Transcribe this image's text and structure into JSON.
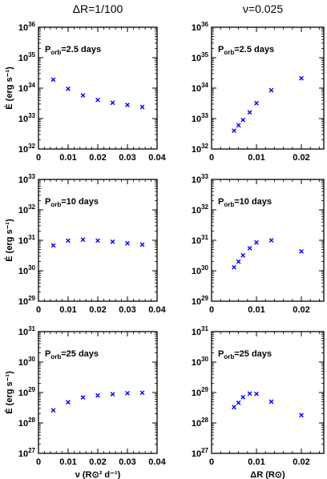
{
  "column_titles": [
    "ΔR=1/100",
    "ν=0.025"
  ],
  "colors": {
    "points": "#0000ff",
    "axes": "#000000"
  },
  "chart_data": [
    {
      "id": "nu-2.5",
      "type": "scatter",
      "marker": "x",
      "log_y": true,
      "annotation": "P_orb=2.5 days",
      "xlim": [
        0,
        0.04
      ],
      "ylim_exp": [
        32,
        36
      ],
      "xticks": [
        0,
        0.01,
        0.02,
        0.03,
        0.04
      ],
      "xtick_labels": [
        "0",
        "0.01",
        "0.02",
        "0.03",
        "0.04"
      ],
      "ylabel": "Ė (erg s⁻¹)",
      "xlabel": "",
      "x": [
        0.005,
        0.01,
        0.015,
        0.02,
        0.025,
        0.03,
        0.035
      ],
      "y": [
        1.9e+34,
        9.5e+33,
        5.8e+33,
        4.1e+33,
        3.3e+33,
        2.8e+33,
        2.4e+33
      ]
    },
    {
      "id": "dr-2.5",
      "type": "scatter",
      "marker": "x",
      "log_y": true,
      "annotation": "P_orb=2.5 days",
      "xlim": [
        0,
        0.025
      ],
      "ylim_exp": [
        32,
        36
      ],
      "xticks": [
        0,
        0.01,
        0.02
      ],
      "xtick_labels": [
        "0",
        "0.01",
        "0.02"
      ],
      "ylabel": "",
      "xlabel": "",
      "x": [
        0.005,
        0.006,
        0.007,
        0.0085,
        0.01,
        0.0133,
        0.02
      ],
      "y": [
        4e+32,
        6e+32,
        9e+32,
        1.6e+33,
        3.2e+33,
        8.5e+33,
        2.1e+34
      ]
    },
    {
      "id": "nu-10",
      "type": "scatter",
      "marker": "x",
      "log_y": true,
      "annotation": "P_orb=10 days",
      "xlim": [
        0,
        0.04
      ],
      "ylim_exp": [
        29,
        33
      ],
      "xticks": [
        0,
        0.01,
        0.02,
        0.03,
        0.04
      ],
      "xtick_labels": [
        "0",
        "0.01",
        "0.02",
        "0.03",
        "0.04"
      ],
      "ylabel": "Ė (erg s⁻¹)",
      "xlabel": "",
      "x": [
        0.005,
        0.01,
        0.015,
        0.02,
        0.025,
        0.03,
        0.035
      ],
      "y": [
        6.8e+30,
        9.8e+30,
        1.05e+31,
        9.8e+30,
        9e+30,
        8e+30,
        7.2e+30
      ]
    },
    {
      "id": "dr-10",
      "type": "scatter",
      "marker": "x",
      "log_y": true,
      "annotation": "P_orb=10 days",
      "xlim": [
        0,
        0.025
      ],
      "ylim_exp": [
        29,
        33
      ],
      "xticks": [
        0,
        0.01,
        0.02
      ],
      "xtick_labels": [
        "0",
        "0.01",
        "0.02"
      ],
      "ylabel": "",
      "xlabel": "",
      "x": [
        0.005,
        0.006,
        0.007,
        0.0085,
        0.01,
        0.0133,
        0.02
      ],
      "y": [
        1.3e+30,
        2e+30,
        3.2e+30,
        5.5e+30,
        8.5e+30,
        1e+31,
        4.3e+30
      ]
    },
    {
      "id": "nu-25",
      "type": "scatter",
      "marker": "x",
      "log_y": true,
      "annotation": "P_orb=25 days",
      "xlim": [
        0,
        0.04
      ],
      "ylim_exp": [
        27,
        31
      ],
      "xticks": [
        0,
        0.01,
        0.02,
        0.03,
        0.04
      ],
      "xtick_labels": [
        "0",
        "0.01",
        "0.02",
        "0.03",
        "0.04"
      ],
      "ylabel": "Ė (erg s⁻¹)",
      "xlabel": "ν (R⊙² d⁻¹)",
      "x": [
        0.005,
        0.01,
        0.015,
        0.02,
        0.025,
        0.03,
        0.035
      ],
      "y": [
        2.6e+28,
        4.8e+28,
        6.9e+28,
        8e+28,
        8.8e+28,
        9.5e+28,
        9.8e+28
      ]
    },
    {
      "id": "dr-25",
      "type": "scatter",
      "marker": "x",
      "log_y": true,
      "annotation": "P_orb=25 days",
      "xlim": [
        0,
        0.025
      ],
      "ylim_exp": [
        27,
        31
      ],
      "xticks": [
        0,
        0.01,
        0.02
      ],
      "xtick_labels": [
        "0",
        "0.01",
        "0.02"
      ],
      "ylabel": "",
      "xlabel": "ΔR (R⊙)",
      "x": [
        0.005,
        0.006,
        0.007,
        0.0085,
        0.01,
        0.0133,
        0.02
      ],
      "y": [
        3.3e+28,
        4.6e+28,
        7e+28,
        9.2e+28,
        9e+28,
        5e+28,
        1.8e+28
      ]
    }
  ]
}
